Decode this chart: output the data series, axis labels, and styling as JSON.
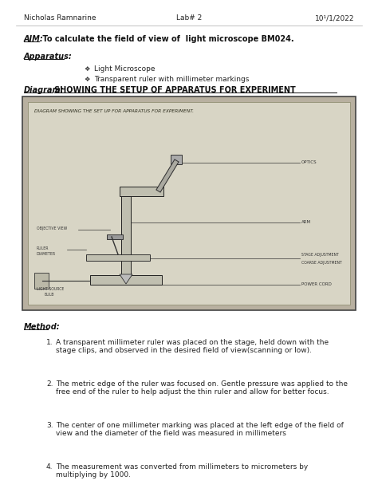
{
  "bg_color": "#ffffff",
  "header_name": "Nicholas Ramnarine",
  "header_lab": "Lab# 2",
  "header_date": "10¹/1/2022",
  "aim_label": "AIM:",
  "aim_text": " To calculate the field of view of  light microscope BM024.",
  "apparatus_label": "Apparatus:",
  "apparatus_items": [
    "Light Microscope",
    "Transparent ruler with millimeter markings"
  ],
  "diagram_label": "Diagram:",
  "diagram_title": "SHOWING THE SETUP OF APPARATUS FOR EXPERIMENT",
  "method_label": "Method:",
  "method_items": [
    "A transparent millimeter ruler was placed on the stage, held down with the\nstage clips, and observed in the desired field of view(scanning or low).",
    "The metric edge of the ruler was focused on. Gentle pressure was applied to the\nfree end of the ruler to help adjust the thin ruler and allow for better focus.",
    "The center of one millimeter marking was placed at the left edge of the field of\nview and the diameter of the field was measured in millimeters",
    "The measurement was converted from millimeters to micrometers by\nmultiplying by 1000."
  ],
  "image_bg": "#b8b0a0",
  "image_border": "#444444",
  "inner_bg": "#d8d5c5"
}
